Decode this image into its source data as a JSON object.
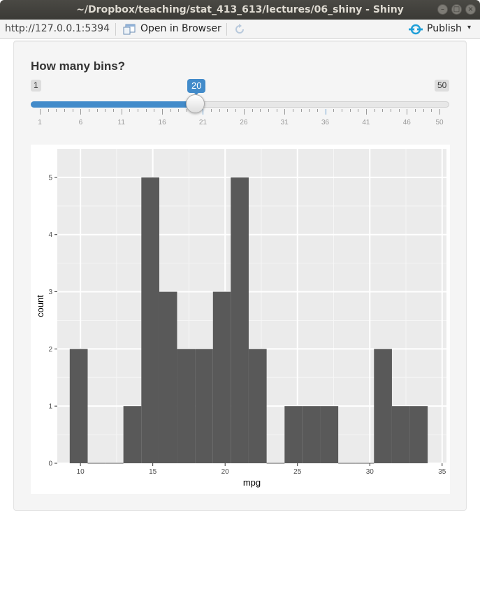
{
  "window": {
    "title": "~/Dropbox/teaching/stat_413_613/lectures/06_shiny - Shiny",
    "close_glyph": "×",
    "minimize_glyph": "–",
    "maximize_glyph": "□"
  },
  "toolbar": {
    "url": "http://127.0.0.1:5394",
    "open_in_browser_label": "Open in Browser",
    "publish_label": "Publish",
    "publish_caret": "▾",
    "icons": [
      "open-in-browser-icon",
      "refresh-icon",
      "publish-icon",
      "caret-down-icon"
    ],
    "publish_color": "#1f9fd8"
  },
  "slider": {
    "label": "How many bins?",
    "min_label": "1",
    "max_label": "50",
    "value_label": "20",
    "min": 1,
    "max": 50,
    "value": 20,
    "grid_labels": [
      "1",
      "6",
      "11",
      "16",
      "21",
      "26",
      "31",
      "36",
      "41",
      "46",
      "50"
    ],
    "accent_color": "#428bca"
  },
  "chart_data": {
    "type": "bar",
    "title": "",
    "xlabel": "mpg",
    "ylabel": "count",
    "xlim": [
      8.4,
      35.3
    ],
    "ylim": [
      0,
      5.5
    ],
    "x_ticks": [
      10,
      15,
      20,
      25,
      30,
      35
    ],
    "x_tick_labels": [
      "10",
      "15",
      "20",
      "25",
      "30",
      "35"
    ],
    "y_ticks": [
      0,
      1,
      2,
      3,
      4,
      5
    ],
    "y_tick_labels": [
      "0",
      "1",
      "2",
      "3",
      "4",
      "5"
    ],
    "bin_edges": [
      9.26,
      10.5,
      11.74,
      12.97,
      14.21,
      15.45,
      16.68,
      17.92,
      19.16,
      20.39,
      21.63,
      22.87,
      24.11,
      25.34,
      26.58,
      27.82,
      29.05,
      30.29,
      31.53,
      32.76,
      34.0
    ],
    "counts": [
      2,
      0,
      0,
      1,
      5,
      3,
      2,
      2,
      3,
      5,
      2,
      0,
      1,
      1,
      1,
      0,
      0,
      2,
      1,
      1
    ],
    "bar_color": "#595959",
    "panel_color": "#ebebeb",
    "grid": true
  }
}
